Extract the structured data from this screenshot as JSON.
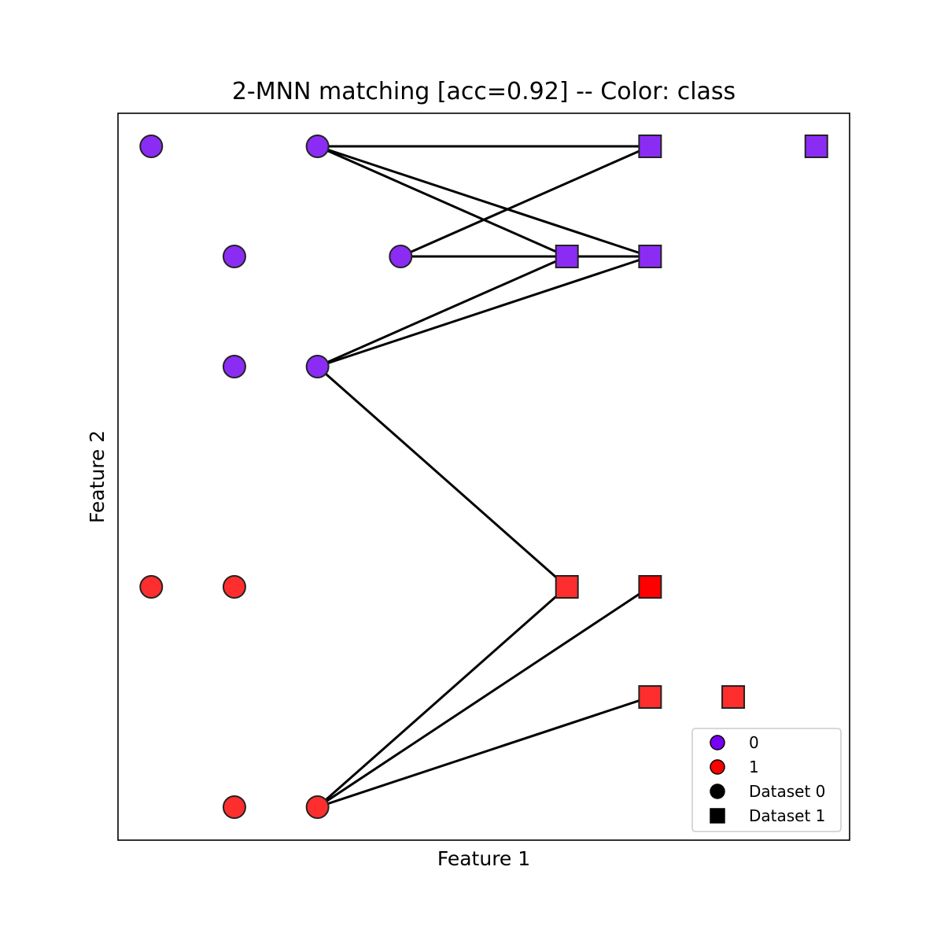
{
  "chart_data": {
    "type": "scatter",
    "title": "2-MNN matching [acc=0.92] -- Color: class",
    "xlabel": "Feature 1",
    "ylabel": "Feature 2",
    "xlim": [
      -0.4,
      8.4
    ],
    "ylim": [
      -0.3,
      6.3
    ],
    "xticks": [],
    "yticks": [],
    "grid": false,
    "colors": {
      "class_0": "#8b2cf5",
      "class_1": "#ff2e2e",
      "class_1_dark": "#ff0000",
      "edge": "#222222",
      "line": "#000000"
    },
    "series": [
      {
        "dataset": 0,
        "marker": "circle",
        "points": [
          {
            "x": 0,
            "y": 6,
            "class": 0
          },
          {
            "x": 2,
            "y": 6,
            "class": 0
          },
          {
            "x": 1,
            "y": 5,
            "class": 0
          },
          {
            "x": 3,
            "y": 5,
            "class": 0
          },
          {
            "x": 1,
            "y": 4,
            "class": 0
          },
          {
            "x": 2,
            "y": 4,
            "class": 0
          },
          {
            "x": 0,
            "y": 2,
            "class": 1
          },
          {
            "x": 1,
            "y": 2,
            "class": 1
          },
          {
            "x": 1,
            "y": 0,
            "class": 1
          },
          {
            "x": 2,
            "y": 0,
            "class": 1
          }
        ]
      },
      {
        "dataset": 1,
        "marker": "square",
        "points": [
          {
            "x": 6,
            "y": 6,
            "class": 0
          },
          {
            "x": 8,
            "y": 6,
            "class": 0
          },
          {
            "x": 5,
            "y": 5,
            "class": 0
          },
          {
            "x": 6,
            "y": 5,
            "class": 0
          },
          {
            "x": 5,
            "y": 2,
            "class": 1
          },
          {
            "x": 6,
            "y": 2,
            "class": 1,
            "dark": true
          },
          {
            "x": 6,
            "y": 1,
            "class": 1
          },
          {
            "x": 7,
            "y": 1,
            "class": 1
          }
        ]
      }
    ],
    "matches": [
      {
        "from": [
          2,
          6
        ],
        "to": [
          6,
          6
        ]
      },
      {
        "from": [
          2,
          6
        ],
        "to": [
          5,
          5
        ]
      },
      {
        "from": [
          2,
          6
        ],
        "to": [
          6,
          5
        ]
      },
      {
        "from": [
          3,
          5
        ],
        "to": [
          6,
          6
        ]
      },
      {
        "from": [
          3,
          5
        ],
        "to": [
          5,
          5
        ]
      },
      {
        "from": [
          3,
          5
        ],
        "to": [
          6,
          5
        ]
      },
      {
        "from": [
          2,
          4
        ],
        "to": [
          5,
          5
        ]
      },
      {
        "from": [
          2,
          4
        ],
        "to": [
          6,
          5
        ]
      },
      {
        "from": [
          2,
          4
        ],
        "to": [
          5,
          2
        ]
      },
      {
        "from": [
          2,
          0
        ],
        "to": [
          5,
          2
        ]
      },
      {
        "from": [
          2,
          0
        ],
        "to": [
          6,
          2
        ]
      },
      {
        "from": [
          2,
          0
        ],
        "to": [
          6,
          1
        ]
      }
    ],
    "legend": {
      "position": "lower right",
      "entries": [
        {
          "label": "0",
          "marker": "circle",
          "color": "#7a00f5"
        },
        {
          "label": "1",
          "marker": "circle",
          "color": "#ff0000"
        },
        {
          "label": "Dataset 0",
          "marker": "circle",
          "color": "#000000"
        },
        {
          "label": "Dataset 1",
          "marker": "square",
          "color": "#000000"
        }
      ]
    }
  }
}
